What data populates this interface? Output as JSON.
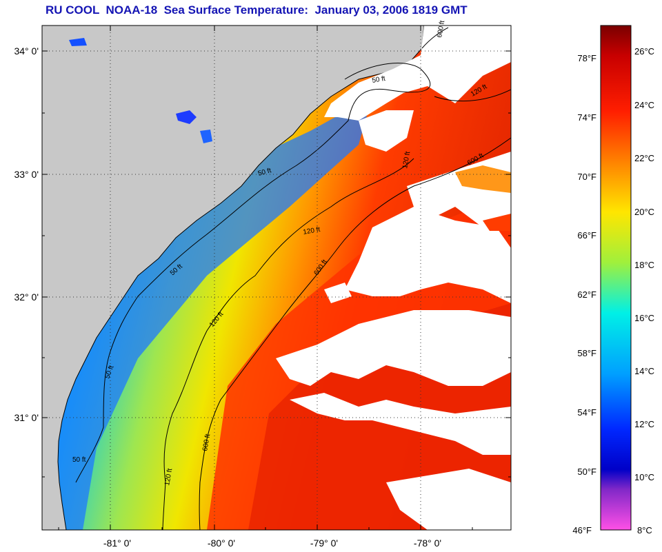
{
  "title": "RU COOL  NOAA-18  Sea Surface Temperature:  January 03, 2006 1819 GMT",
  "map": {
    "latitude_labels": [
      "34° 0'",
      "33° 0'",
      "32° 0'",
      "31° 0'"
    ],
    "longitude_labels": [
      "-81° 0'",
      "-80° 0'",
      "-79° 0'",
      "-78° 0'"
    ],
    "contour_labels": [
      "50 ft",
      "50 ft",
      "120 ft",
      "120 ft",
      "120 ft",
      "120 ft",
      "600 ft",
      "600 ft",
      "600 ft",
      "600 ft",
      "50 ft",
      "50 ft",
      "120 ft",
      "50 ft"
    ],
    "land_color": "#c8c8c8",
    "cloud_color": "#ffffff"
  },
  "colorbar": {
    "fahrenheit_labels": [
      "78°F",
      "74°F",
      "70°F",
      "66°F",
      "62°F",
      "58°F",
      "54°F",
      "50°F",
      "46°F"
    ],
    "celsius_labels": [
      "26°C",
      "24°C",
      "22°C",
      "20°C",
      "18°C",
      "16°C",
      "14°C",
      "12°C",
      "10°C",
      "8°C"
    ]
  }
}
